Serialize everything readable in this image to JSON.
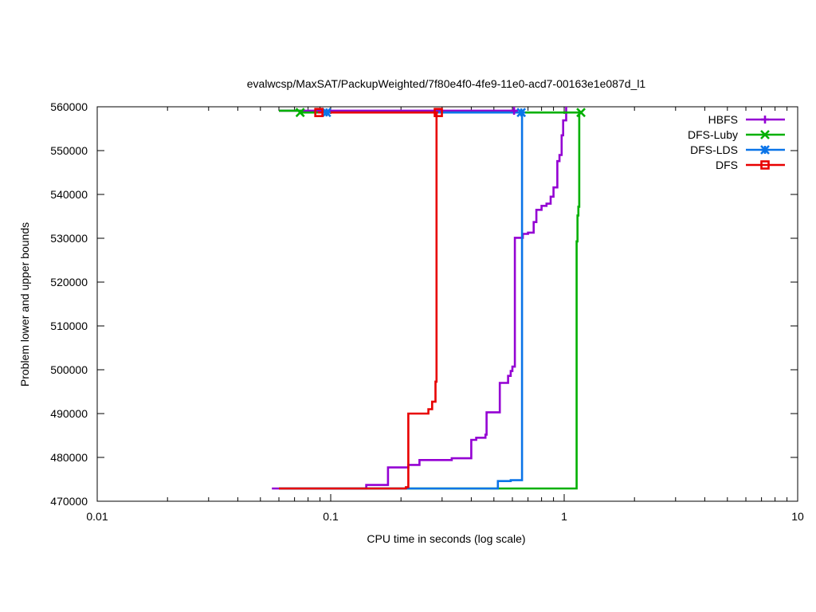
{
  "chart_data": {
    "type": "line",
    "title": "evalwcsp/MaxSAT/PackupWeighted/7f80e4f0-4fe9-11e0-acd7-00163e1e087d_l1",
    "xlabel": "CPU time in seconds (log scale)",
    "ylabel": "Problem lower and upper bounds",
    "xscale": "log",
    "xlim": [
      0.01,
      10
    ],
    "ylim": [
      470000,
      560000
    ],
    "x_ticks": [
      0.01,
      0.1,
      1,
      10
    ],
    "x_tick_labels": [
      "0.01",
      "0.1",
      "1",
      "10"
    ],
    "y_ticks": [
      470000,
      480000,
      490000,
      500000,
      510000,
      520000,
      530000,
      540000,
      550000,
      560000
    ],
    "y_tick_labels": [
      "470000",
      "480000",
      "490000",
      "500000",
      "510000",
      "520000",
      "530000",
      "540000",
      "550000",
      "560000"
    ],
    "legend_position": "top-right",
    "grid": false,
    "series": [
      {
        "name": "HBFS",
        "color": "#9400d3",
        "marker": "plus",
        "lower": [
          [
            0.056,
            472900
          ],
          [
            0.142,
            472900
          ],
          [
            0.142,
            473700
          ],
          [
            0.176,
            473700
          ],
          [
            0.176,
            477700
          ],
          [
            0.215,
            477700
          ],
          [
            0.215,
            478300
          ],
          [
            0.24,
            478300
          ],
          [
            0.24,
            479400
          ],
          [
            0.33,
            479400
          ],
          [
            0.33,
            479800
          ],
          [
            0.4,
            479800
          ],
          [
            0.4,
            484000
          ],
          [
            0.42,
            484000
          ],
          [
            0.42,
            484500
          ],
          [
            0.46,
            484500
          ],
          [
            0.46,
            485200
          ],
          [
            0.465,
            485200
          ],
          [
            0.465,
            490300
          ],
          [
            0.53,
            490300
          ],
          [
            0.53,
            497000
          ],
          [
            0.575,
            497000
          ],
          [
            0.575,
            498600
          ],
          [
            0.59,
            498600
          ],
          [
            0.59,
            499700
          ],
          [
            0.6,
            499700
          ],
          [
            0.6,
            500700
          ],
          [
            0.615,
            500700
          ],
          [
            0.615,
            530100
          ],
          [
            0.665,
            530100
          ],
          [
            0.665,
            531000
          ],
          [
            0.7,
            531000
          ],
          [
            0.7,
            531300
          ],
          [
            0.74,
            531300
          ],
          [
            0.74,
            533700
          ],
          [
            0.76,
            533700
          ],
          [
            0.76,
            536500
          ],
          [
            0.8,
            536500
          ],
          [
            0.8,
            537400
          ],
          [
            0.84,
            537400
          ],
          [
            0.84,
            537900
          ],
          [
            0.875,
            537900
          ],
          [
            0.875,
            539500
          ],
          [
            0.9,
            539500
          ],
          [
            0.9,
            541600
          ],
          [
            0.935,
            541600
          ],
          [
            0.935,
            547600
          ],
          [
            0.955,
            547600
          ],
          [
            0.955,
            549000
          ],
          [
            0.975,
            549000
          ],
          [
            0.975,
            553500
          ],
          [
            0.99,
            553500
          ],
          [
            0.99,
            556900
          ],
          [
            1.02,
            556900
          ],
          [
            1.02,
            560000
          ]
        ],
        "upper": [
          [
            0.06,
            559100
          ],
          [
            0.61,
            559100
          ],
          [
            0.61,
            558700
          ],
          [
            0.63,
            558700
          ]
        ]
      },
      {
        "name": "DFS-Luby",
        "color": "#00b000",
        "marker": "x",
        "lower": [
          [
            0.06,
            472900
          ],
          [
            1.13,
            472900
          ],
          [
            1.13,
            529300
          ],
          [
            1.14,
            529300
          ],
          [
            1.14,
            535200
          ],
          [
            1.15,
            535200
          ],
          [
            1.15,
            537200
          ],
          [
            1.16,
            537200
          ],
          [
            1.16,
            558700
          ]
        ],
        "upper": [
          [
            0.06,
            559100
          ],
          [
            0.074,
            559100
          ],
          [
            0.074,
            558700
          ],
          [
            1.18,
            558700
          ]
        ]
      },
      {
        "name": "DFS-LDS",
        "color": "#0a74e8",
        "marker": "star",
        "lower": [
          [
            0.06,
            472900
          ],
          [
            0.52,
            472900
          ],
          [
            0.52,
            474600
          ],
          [
            0.59,
            474600
          ],
          [
            0.59,
            474800
          ],
          [
            0.66,
            474800
          ],
          [
            0.66,
            558700
          ]
        ],
        "upper": [
          [
            0.09,
            558700
          ],
          [
            0.66,
            558700
          ]
        ]
      },
      {
        "name": "DFS",
        "color": "#e80000",
        "marker": "square",
        "lower": [
          [
            0.06,
            472900
          ],
          [
            0.21,
            472900
          ],
          [
            0.21,
            473200
          ],
          [
            0.215,
            473200
          ],
          [
            0.215,
            490000
          ],
          [
            0.262,
            490000
          ],
          [
            0.262,
            491000
          ],
          [
            0.272,
            491000
          ],
          [
            0.272,
            492700
          ],
          [
            0.281,
            492700
          ],
          [
            0.281,
            497300
          ],
          [
            0.284,
            497300
          ],
          [
            0.284,
            558700
          ]
        ],
        "upper": [
          [
            0.088,
            558700
          ],
          [
            0.289,
            558700
          ]
        ]
      }
    ],
    "markers_xy": {
      "HBFS": [
        [
          0.61,
          559100
        ]
      ],
      "DFS-Luby": [
        [
          0.074,
          558700
        ],
        [
          1.18,
          558700
        ]
      ],
      "DFS-LDS": [
        [
          0.096,
          558700
        ],
        [
          0.655,
          558700
        ]
      ],
      "DFS": [
        [
          0.089,
          558700
        ],
        [
          0.289,
          558700
        ]
      ]
    }
  }
}
